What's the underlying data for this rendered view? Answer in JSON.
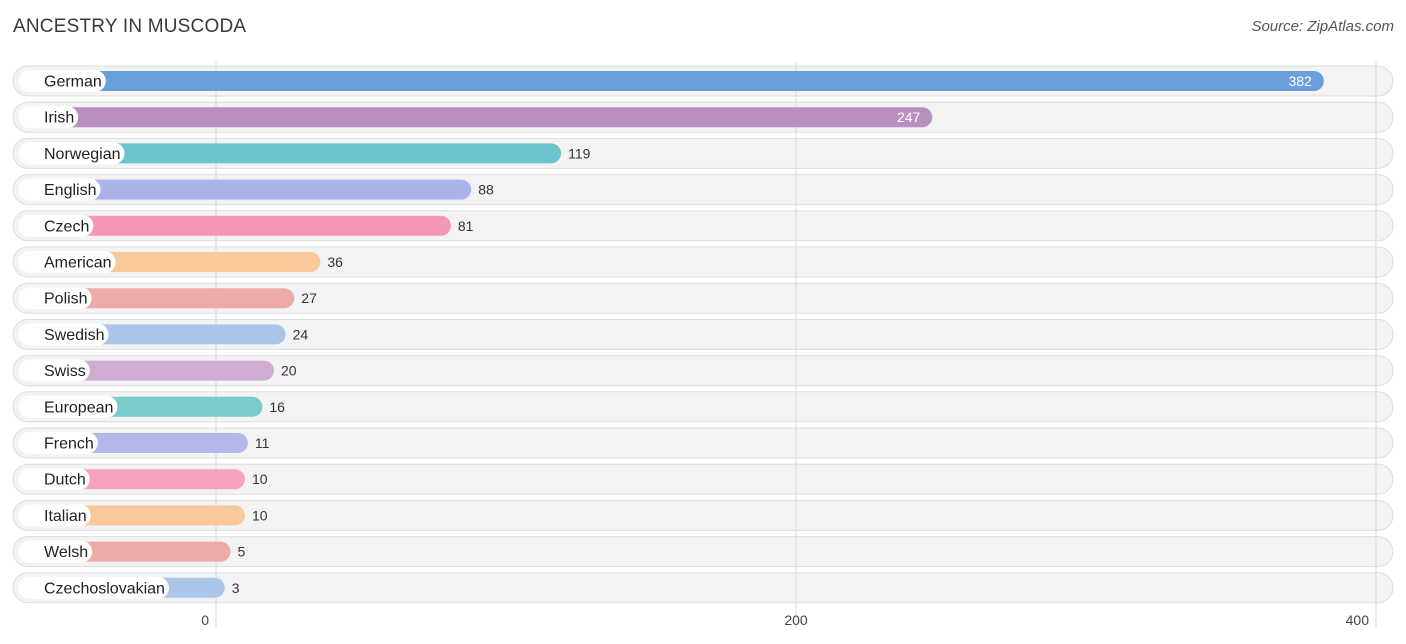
{
  "header": {
    "title": "ANCESTRY IN MUSCODA",
    "source": "Source: ZipAtlas.com"
  },
  "chart_data": {
    "type": "bar",
    "orientation": "horizontal",
    "title": "ANCESTRY IN MUSCODA",
    "xlabel": "",
    "ylabel": "",
    "xlim": [
      0,
      400
    ],
    "ticks": [
      0,
      200,
      400
    ],
    "grid": true,
    "categories": [
      "German",
      "Irish",
      "Norwegian",
      "English",
      "Czech",
      "American",
      "Polish",
      "Swedish",
      "Swiss",
      "European",
      "French",
      "Dutch",
      "Italian",
      "Welsh",
      "Czechoslovakian"
    ],
    "values": [
      382,
      247,
      119,
      88,
      81,
      36,
      27,
      24,
      20,
      16,
      11,
      10,
      10,
      5,
      3
    ],
    "colors": [
      "#6a9fdb",
      "#b98fc2",
      "#6cc3cc",
      "#aab3e8",
      "#f497b3",
      "#f8c99a",
      "#eeaaa8",
      "#a9c5ea",
      "#cfadd2",
      "#7ccbcc",
      "#b3b7ea",
      "#f6a2bf",
      "#f8c99a",
      "#eeaaa8",
      "#a9c5ea"
    ]
  }
}
